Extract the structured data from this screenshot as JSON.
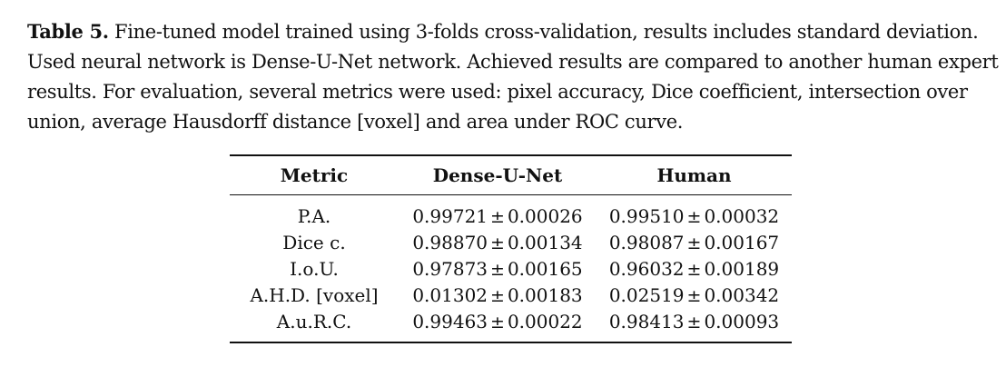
{
  "caption": {
    "label": "Table 5.",
    "text": "Fine-tuned model trained using 3-folds cross-validation, results includes standard deviation. Used neural network is Dense-U-Net network. Achieved results are compared to another human expert results. For evaluation, several metrics were used: pixel accuracy, Dice coefficient, intersection over union, average Hausdorff distance [voxel] and area under ROC curve."
  },
  "table": {
    "headers": [
      "Metric",
      "Dense-U-Net",
      "Human"
    ],
    "plus_minus": "±",
    "rows": [
      {
        "metric": "P.A.",
        "dense_mean": "0.99721",
        "dense_sd": "0.00026",
        "human_mean": "0.99510",
        "human_sd": "0.00032"
      },
      {
        "metric": "Dice c.",
        "dense_mean": "0.98870",
        "dense_sd": "0.00134",
        "human_mean": "0.98087",
        "human_sd": "0.00167"
      },
      {
        "metric": "I.o.U.",
        "dense_mean": "0.97873",
        "dense_sd": "0.00165",
        "human_mean": "0.96032",
        "human_sd": "0.00189"
      },
      {
        "metric": "A.H.D. [voxel]",
        "dense_mean": "0.01302",
        "dense_sd": "0.00183",
        "human_mean": "0.02519",
        "human_sd": "0.00342"
      },
      {
        "metric": "A.u.R.C.",
        "dense_mean": "0.99463",
        "dense_sd": "0.00022",
        "human_mean": "0.98413",
        "human_sd": "0.00093"
      }
    ]
  }
}
